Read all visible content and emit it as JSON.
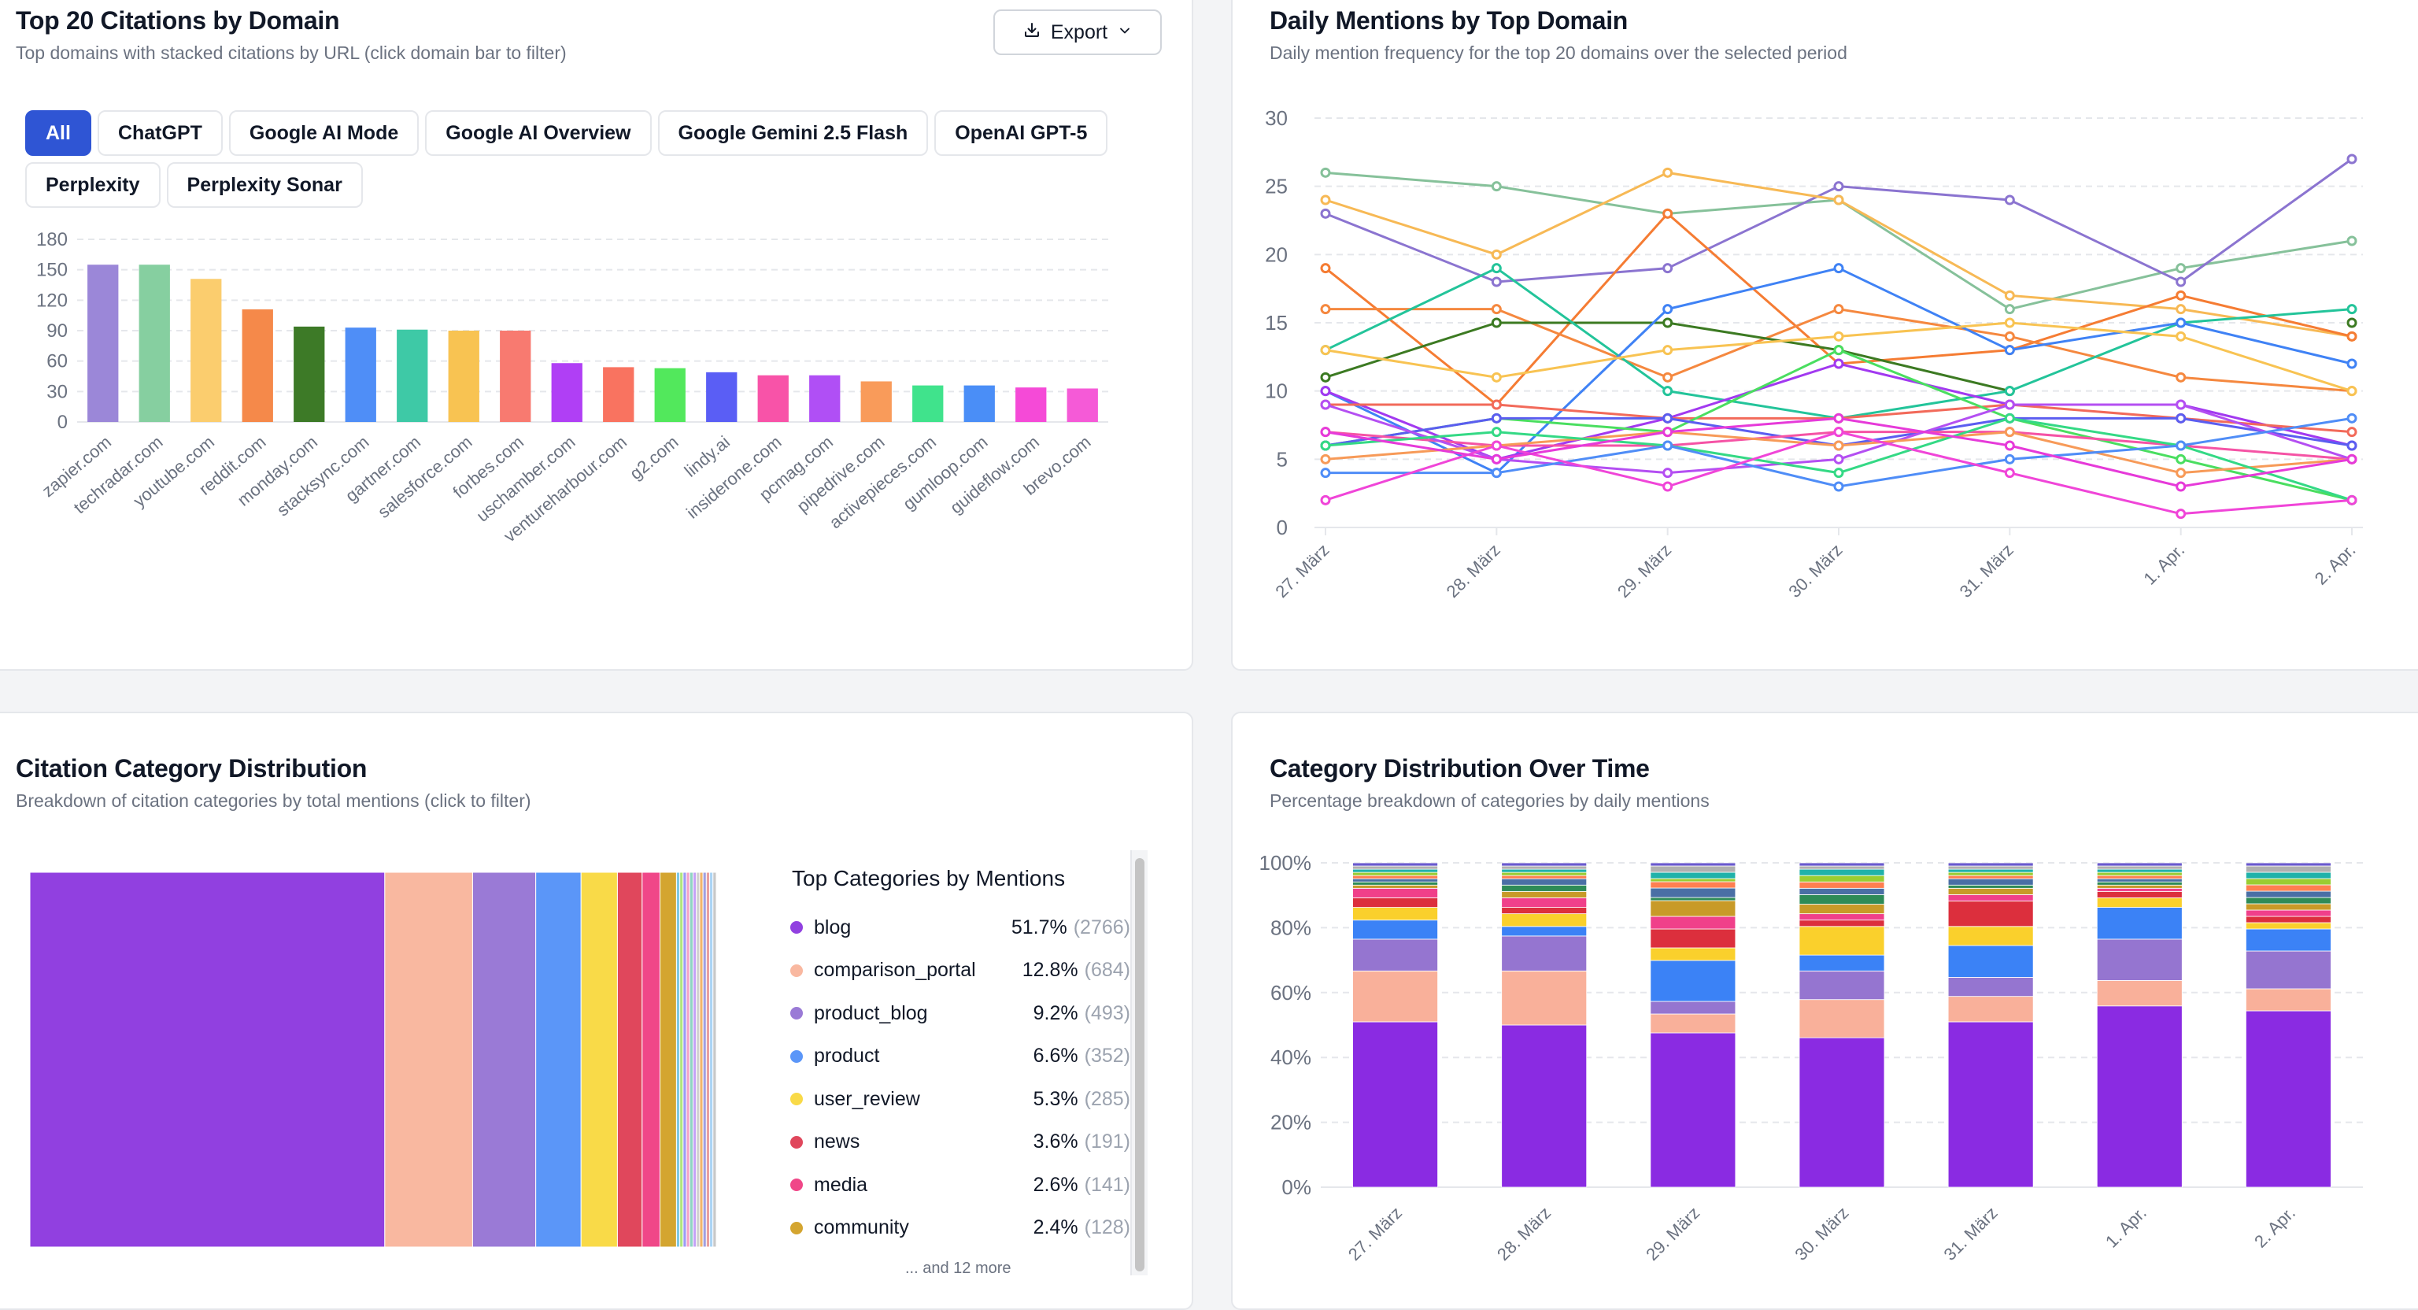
{
  "panels": {
    "top_left": {
      "title": "Top 20 Citations by Domain",
      "subtitle": "Top domains with stacked citations by URL (click domain bar to filter)",
      "export_label": "Export",
      "tabs": [
        "All",
        "ChatGPT",
        "Google AI Mode",
        "Google AI Overview",
        "Google Gemini 2.5 Flash",
        "OpenAI GPT-5",
        "Perplexity",
        "Perplexity Sonar"
      ],
      "active_tab": "All"
    },
    "top_right": {
      "title": "Daily Mentions by Top Domain",
      "subtitle": "Daily mention frequency for the top 20 domains over the selected period"
    },
    "bottom_left": {
      "title": "Citation Category Distribution",
      "subtitle": "Breakdown of citation categories by total mentions (click to filter)",
      "legend_title": "Top Categories by Mentions",
      "legend_more": "... and 12 more"
    },
    "bottom_right": {
      "title": "Category Distribution Over Time",
      "subtitle": "Percentage breakdown of categories by daily mentions"
    }
  },
  "colors": {
    "accent": "#2f55d4",
    "grid": "#e5e7eb",
    "axis_text": "#6b7280"
  },
  "icons": {
    "export": "download-icon",
    "dropdown": "chevron-down-icon"
  },
  "chart_data": [
    {
      "id": "domain_bars",
      "type": "bar",
      "categories": [
        "zapier.com",
        "techradar.com",
        "youtube.com",
        "reddit.com",
        "monday.com",
        "stacksync.com",
        "gartner.com",
        "salesforce.com",
        "forbes.com",
        "uschamber.com",
        "ventureharbour.com",
        "g2.com",
        "lindy.ai",
        "insiderone.com",
        "pcmag.com",
        "pipedrive.com",
        "activepieces.com",
        "gumloop.com",
        "guideflow.com",
        "brevo.com"
      ],
      "values": [
        155,
        155,
        141,
        111,
        94,
        93,
        91,
        90,
        90,
        58,
        54,
        53,
        49,
        46,
        46,
        40,
        36,
        36,
        34,
        33
      ],
      "colors": [
        "#9b87d8",
        "#86cfa0",
        "#fbcd6e",
        "#f5894a",
        "#3d7a27",
        "#4f8ef7",
        "#3ec9a6",
        "#f8c352",
        "#f87a70",
        "#b03ff5",
        "#f97360",
        "#52e85c",
        "#5a5ef5",
        "#f853a8",
        "#b04ff5",
        "#f99b5a",
        "#40e38c",
        "#4a8ef7",
        "#f54ad7",
        "#f55ad7"
      ],
      "yticks": [
        0,
        30,
        60,
        90,
        120,
        150,
        180
      ],
      "ylim": [
        0,
        180
      ]
    },
    {
      "id": "daily_mentions",
      "type": "line",
      "x": [
        "27. März",
        "28. März",
        "29. März",
        "30. März",
        "31. März",
        "1. Apr.",
        "2. Apr."
      ],
      "yticks": [
        0,
        5,
        10,
        15,
        20,
        25,
        30
      ],
      "ylim": [
        0,
        30
      ],
      "series": [
        {
          "color": "#86c19a",
          "values": [
            26,
            25,
            23,
            24,
            16,
            19,
            21
          ]
        },
        {
          "color": "#8b74d0",
          "values": [
            23,
            18,
            19,
            25,
            24,
            18,
            27
          ]
        },
        {
          "color": "#f7b955",
          "values": [
            24,
            20,
            26,
            24,
            17,
            16,
            14
          ]
        },
        {
          "color": "#f57c33",
          "values": [
            19,
            9,
            23,
            12,
            13,
            17,
            14
          ]
        },
        {
          "color": "#f5883f",
          "values": [
            16,
            16,
            11,
            16,
            14,
            11,
            10
          ]
        },
        {
          "color": "#3c7a22",
          "values": [
            11,
            15,
            15,
            13,
            10,
            null,
            15
          ]
        },
        {
          "color": "#23c49a",
          "values": [
            13,
            19,
            10,
            8,
            10,
            15,
            16
          ]
        },
        {
          "color": "#3f82f5",
          "values": [
            10,
            4,
            16,
            19,
            13,
            15,
            12
          ]
        },
        {
          "color": "#f8c352",
          "values": [
            13,
            11,
            13,
            14,
            15,
            14,
            10
          ]
        },
        {
          "color": "#a239f0",
          "values": [
            10,
            5,
            8,
            12,
            9,
            9,
            6
          ]
        },
        {
          "color": "#f26a5a",
          "values": [
            9,
            9,
            8,
            8,
            9,
            8,
            7
          ]
        },
        {
          "color": "#4ade60",
          "values": [
            6,
            8,
            7,
            13,
            8,
            5,
            2
          ]
        },
        {
          "color": "#5b5df0",
          "values": [
            6,
            8,
            8,
            6,
            8,
            8,
            6
          ]
        },
        {
          "color": "#f553a5",
          "values": [
            7,
            6,
            6,
            7,
            7,
            6,
            5
          ]
        },
        {
          "color": "#b44ff2",
          "values": [
            9,
            5,
            4,
            5,
            9,
            9,
            5
          ]
        },
        {
          "color": "#f79a58",
          "values": [
            5,
            6,
            7,
            6,
            7,
            4,
            5
          ]
        },
        {
          "color": "#34d985",
          "values": [
            6,
            7,
            6,
            4,
            8,
            6,
            2
          ]
        },
        {
          "color": "#4f8df7",
          "values": [
            4,
            4,
            6,
            3,
            5,
            6,
            8
          ]
        },
        {
          "color": "#f045d8",
          "values": [
            2,
            6,
            3,
            7,
            4,
            1,
            2
          ]
        },
        {
          "color": "#e63ad9",
          "values": [
            7,
            5,
            7,
            8,
            6,
            3,
            5
          ]
        }
      ]
    },
    {
      "id": "category_treemap",
      "type": "bar",
      "layout": "treemap-strip",
      "categories": [
        "blog",
        "comparison_portal",
        "product_blog",
        "product",
        "user_review",
        "news",
        "media",
        "community"
      ],
      "percent": [
        51.7,
        12.8,
        9.2,
        6.6,
        5.3,
        3.6,
        2.6,
        2.4
      ],
      "counts": [
        2766,
        684,
        493,
        352,
        285,
        191,
        141,
        128
      ],
      "colors": [
        "#9140e0",
        "#f9b8a0",
        "#9a7ad6",
        "#5b96f8",
        "#f9da48",
        "#e0475c",
        "#f04788",
        "#d4a530"
      ],
      "pct_labels": [
        "51.7%",
        "12.8%",
        "9.2%",
        "6.6%",
        "5.3%",
        "3.6%",
        "2.6%",
        "2.4%"
      ],
      "count_labels": [
        "(2766)",
        "(684)",
        "(493)",
        "(352)",
        "(285)",
        "(191)",
        "(141)",
        "(128)"
      ]
    },
    {
      "id": "category_over_time",
      "type": "bar",
      "stacked": true,
      "categories": [
        "27. März",
        "28. März",
        "29. März",
        "30. März",
        "31. März",
        "1. Apr.",
        "2. Apr."
      ],
      "yticks": [
        "0%",
        "20%",
        "40%",
        "60%",
        "80%",
        "100%"
      ],
      "ylim": [
        0,
        100
      ],
      "series": [
        {
          "name": "blog",
          "color": "#8a2be2",
          "values": [
            52,
            51,
            49,
            47,
            52,
            57,
            56
          ]
        },
        {
          "name": "comparison_portal",
          "color": "#f9b09a",
          "values": [
            16,
            17,
            6,
            12,
            8,
            8,
            7
          ]
        },
        {
          "name": "product_blog",
          "color": "#9575d0",
          "values": [
            10,
            11,
            4,
            9,
            6,
            13,
            12
          ]
        },
        {
          "name": "product",
          "color": "#3b82f6",
          "values": [
            6,
            3,
            13,
            5,
            10,
            10,
            7
          ]
        },
        {
          "name": "user_review",
          "color": "#fad02c",
          "values": [
            4,
            4,
            4,
            9,
            6,
            3,
            2
          ]
        },
        {
          "name": "news",
          "color": "#dc2f3d",
          "values": [
            3,
            2,
            6,
            2,
            8,
            2,
            2
          ]
        },
        {
          "name": "media",
          "color": "#f0408a",
          "values": [
            3,
            3,
            4,
            2,
            2,
            1,
            2
          ]
        },
        {
          "name": "community",
          "color": "#c89a28",
          "values": [
            1,
            2,
            5,
            3,
            2,
            1,
            2
          ]
        },
        {
          "name": "",
          "color": "#2e8b57",
          "values": [
            1,
            2,
            1,
            3,
            1,
            1,
            2
          ]
        },
        {
          "name": "",
          "color": "#4a6fa5",
          "values": [
            1,
            2,
            3,
            2,
            2,
            1,
            2
          ]
        },
        {
          "name": "",
          "color": "#ff7f50",
          "values": [
            1,
            1,
            2,
            2,
            1,
            1,
            2
          ]
        },
        {
          "name": "",
          "color": "#9acd32",
          "values": [
            1,
            1,
            1,
            2,
            1,
            1,
            2
          ]
        },
        {
          "name": "",
          "color": "#20b2aa",
          "values": [
            1,
            1,
            2,
            2,
            1,
            1,
            2
          ]
        },
        {
          "name": "",
          "color": "#b0b0b0",
          "values": [
            1,
            1,
            2,
            1,
            1,
            1,
            2
          ]
        },
        {
          "name": "",
          "color": "#6a5acd",
          "values": [
            1,
            1,
            1,
            1,
            1,
            1,
            1
          ]
        }
      ]
    }
  ]
}
